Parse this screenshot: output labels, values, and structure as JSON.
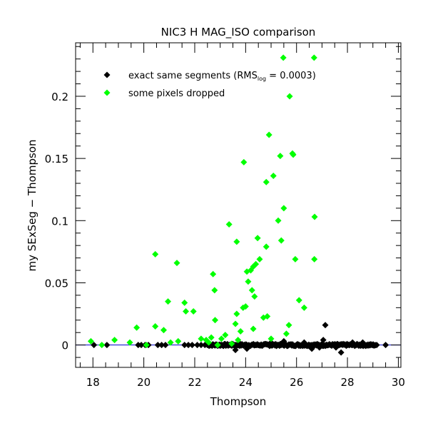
{
  "chart_data": {
    "type": "scatter",
    "title": "NIC3 H MAG_ISO comparison",
    "xlabel": "Thompson",
    "ylabel": "my SExSeg − Thompson",
    "xlim": [
      17.32,
      30.1
    ],
    "ylim": [
      -0.018,
      0.243
    ],
    "x_ticks": [
      18,
      20,
      22,
      24,
      26,
      28,
      30
    ],
    "x_tick_labels": [
      "18",
      "20",
      "22",
      "24",
      "26",
      "28",
      "30"
    ],
    "x_minor_step": 0.5,
    "y_ticks": [
      0,
      0.05,
      0.1,
      0.15,
      0.2
    ],
    "y_tick_labels": [
      "0",
      "0.05",
      "0.1",
      "0.15",
      "0.2"
    ],
    "y_minor_step": 0.01,
    "grid": false,
    "legend_position": "top-left",
    "reference_line": {
      "y": 0,
      "color": "#0000cc"
    },
    "series": [
      {
        "name": "exact same segments",
        "legend_label": "exact same segments (RMS",
        "legend_sub": "log",
        "legend_suffix": " = 0.0003)",
        "color": "#000000",
        "marker": "diamond",
        "band": {
          "x_start": 22.5,
          "x_end": 29.1,
          "y": 0,
          "count": 220,
          "jitter": 0.0008
        },
        "points": [
          [
            18.04,
            0.0
          ],
          [
            18.55,
            0.0
          ],
          [
            19.78,
            0.0
          ],
          [
            19.9,
            0.0
          ],
          [
            20.05,
            0.0
          ],
          [
            20.18,
            0.0
          ],
          [
            20.55,
            0.0
          ],
          [
            20.7,
            0.0
          ],
          [
            20.85,
            0.0
          ],
          [
            21.6,
            0.0
          ],
          [
            21.75,
            0.0
          ],
          [
            21.9,
            0.0
          ],
          [
            22.1,
            0.0
          ],
          [
            22.25,
            0.0
          ],
          [
            22.4,
            0.0
          ],
          [
            23.6,
            -0.004
          ],
          [
            24.05,
            -0.003
          ],
          [
            25.0,
            0.002
          ],
          [
            25.5,
            0.003
          ],
          [
            26.3,
            0.002
          ],
          [
            26.6,
            -0.003
          ],
          [
            26.9,
            -0.002
          ],
          [
            27.05,
            0.004
          ],
          [
            27.13,
            0.016
          ],
          [
            27.55,
            -0.002
          ],
          [
            27.75,
            -0.006
          ],
          [
            28.2,
            0.002
          ],
          [
            28.6,
            0.002
          ],
          [
            29.15,
            0.0
          ],
          [
            29.5,
            0.0
          ]
        ]
      },
      {
        "name": "some pixels dropped",
        "legend_label": "some pixels dropped",
        "color": "#00ff00",
        "marker": "diamond",
        "points": [
          [
            17.92,
            0.003
          ],
          [
            18.35,
            0.0
          ],
          [
            18.85,
            0.004
          ],
          [
            19.45,
            0.002
          ],
          [
            19.72,
            0.014
          ],
          [
            20.1,
            0.0
          ],
          [
            20.45,
            0.073
          ],
          [
            20.45,
            0.015
          ],
          [
            20.78,
            0.012
          ],
          [
            20.95,
            0.035
          ],
          [
            21.05,
            0.002
          ],
          [
            21.3,
            0.066
          ],
          [
            21.35,
            0.003
          ],
          [
            21.6,
            0.034
          ],
          [
            21.65,
            0.027
          ],
          [
            21.95,
            0.027
          ],
          [
            22.25,
            0.005
          ],
          [
            22.45,
            0.004
          ],
          [
            22.55,
            0.002
          ],
          [
            22.65,
            0.006
          ],
          [
            22.72,
            0.057
          ],
          [
            22.78,
            0.044
          ],
          [
            22.8,
            0.02
          ],
          [
            22.9,
            0.0
          ],
          [
            23.05,
            0.005
          ],
          [
            23.2,
            0.008
          ],
          [
            23.35,
            0.097
          ],
          [
            23.45,
            0.001
          ],
          [
            23.6,
            0.017
          ],
          [
            23.65,
            0.083
          ],
          [
            23.65,
            0.025
          ],
          [
            23.7,
            0.004
          ],
          [
            23.8,
            0.011
          ],
          [
            23.9,
            0.03
          ],
          [
            23.93,
            0.147
          ],
          [
            24.0,
            0.031
          ],
          [
            24.05,
            0.059
          ],
          [
            24.1,
            0.051
          ],
          [
            24.2,
            0.06
          ],
          [
            24.25,
            0.044
          ],
          [
            24.3,
            0.063
          ],
          [
            24.35,
            0.039
          ],
          [
            24.4,
            0.065
          ],
          [
            24.3,
            0.013
          ],
          [
            24.47,
            0.086
          ],
          [
            24.55,
            0.069
          ],
          [
            24.7,
            0.022
          ],
          [
            24.81,
            0.079
          ],
          [
            24.81,
            0.131
          ],
          [
            24.85,
            0.023
          ],
          [
            24.92,
            0.169
          ],
          [
            25.0,
            0.005
          ],
          [
            25.09,
            0.136
          ],
          [
            25.28,
            0.1
          ],
          [
            25.36,
            0.152
          ],
          [
            25.4,
            0.084
          ],
          [
            25.48,
            0.231
          ],
          [
            25.5,
            0.11
          ],
          [
            25.6,
            0.009
          ],
          [
            25.7,
            0.016
          ],
          [
            25.73,
            0.2
          ],
          [
            25.84,
            0.154
          ],
          [
            25.87,
            0.153
          ],
          [
            25.95,
            0.069
          ],
          [
            26.1,
            0.036
          ],
          [
            26.3,
            0.03
          ],
          [
            26.69,
            0.231
          ],
          [
            26.71,
            0.103
          ],
          [
            26.7,
            0.069
          ]
        ]
      }
    ]
  }
}
